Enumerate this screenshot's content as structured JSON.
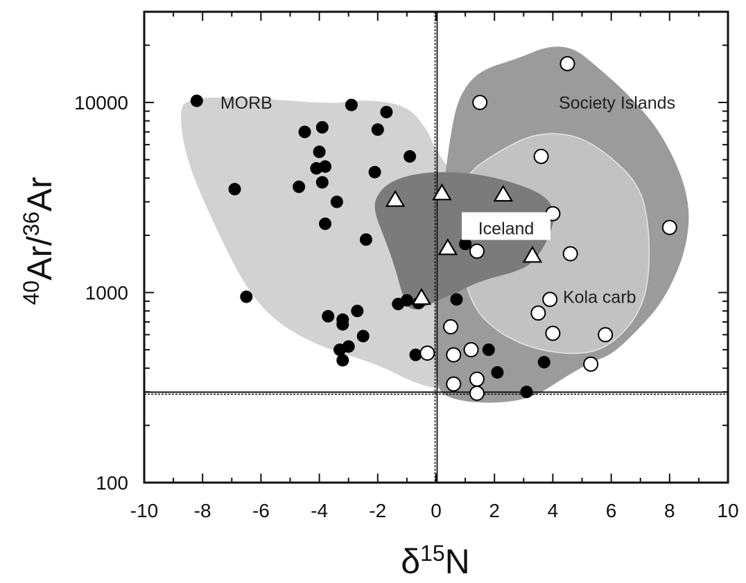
{
  "chart_data": {
    "type": "scatter",
    "title": "",
    "xlabel": {
      "prefix": "δ",
      "sup": "15",
      "base": "N"
    },
    "ylabel": {
      "sup1": "40",
      "base1": "Ar/",
      "sup2": "36",
      "base2": "Ar"
    },
    "x_range": [
      -10,
      10
    ],
    "y_range": [
      100,
      30000
    ],
    "y_scale": "log",
    "x_ticks": [
      -10,
      -8,
      -6,
      -4,
      -2,
      0,
      2,
      4,
      6,
      8,
      10
    ],
    "x_tick_labels": [
      "-10",
      "-8",
      "-6",
      "-4",
      "-2",
      "0",
      "2",
      "4",
      "6",
      "8",
      "10"
    ],
    "y_ticks": [
      100,
      1000,
      10000
    ],
    "y_tick_labels": [
      "100",
      "1000",
      "10000"
    ],
    "reference_lines": {
      "x": 0,
      "y": 295.5
    },
    "grid": false,
    "colors": {
      "morb_field": "#d2d2d2",
      "society_field": "#9b9b9b",
      "kola_field": "#c2c2c2",
      "iceland_field": "#7b7b7b",
      "axis": "#111111"
    },
    "regions": [
      {
        "label": "MORB",
        "label_at": [
          -6.5,
          10000
        ],
        "polygon": [
          [
            -8.6,
            10700
          ],
          [
            -6,
            10500
          ],
          [
            -3.5,
            9800
          ],
          [
            -2.5,
            10400
          ],
          [
            -1,
            9700
          ],
          [
            -0.3,
            7200
          ],
          [
            0,
            5500
          ],
          [
            1,
            3500
          ],
          [
            2.5,
            1700
          ],
          [
            3.5,
            1000
          ],
          [
            4.5,
            520
          ],
          [
            3.3,
            330
          ],
          [
            0.8,
            300
          ],
          [
            -0.6,
            325
          ],
          [
            -2,
            420
          ],
          [
            -4,
            520
          ],
          [
            -5.5,
            700
          ],
          [
            -6.5,
            1050
          ],
          [
            -7.5,
            2100
          ],
          [
            -8.5,
            4700
          ],
          [
            -8.8,
            8300
          ]
        ]
      },
      {
        "label": "Society Islands",
        "label_at": [
          6.2,
          10000
        ],
        "polygon": [
          [
            0.5,
            7000
          ],
          [
            0.8,
            11000
          ],
          [
            1.5,
            14800
          ],
          [
            2.8,
            17000
          ],
          [
            3.8,
            19800
          ],
          [
            4.7,
            19500
          ],
          [
            5.5,
            15500
          ],
          [
            6.6,
            11000
          ],
          [
            7.8,
            6700
          ],
          [
            8.7,
            3200
          ],
          [
            8.6,
            1700
          ],
          [
            7.8,
            900
          ],
          [
            6.8,
            610
          ],
          [
            6,
            470
          ],
          [
            5.3,
            430
          ],
          [
            4.3,
            350
          ],
          [
            3.5,
            290
          ],
          [
            2.6,
            265
          ],
          [
            1.3,
            262
          ],
          [
            0.3,
            282
          ],
          [
            0,
            330
          ],
          [
            -0.1,
            600
          ],
          [
            0.05,
            1400
          ],
          [
            0.2,
            3000
          ]
        ]
      },
      {
        "label": "Kola carb",
        "label_at": [
          5.6,
          950
        ],
        "polygon": [
          [
            1,
            4200
          ],
          [
            2.2,
            5600
          ],
          [
            3.4,
            6900
          ],
          [
            4.8,
            6800
          ],
          [
            6,
            5200
          ],
          [
            7,
            3600
          ],
          [
            7.3,
            2200
          ],
          [
            7.3,
            1200
          ],
          [
            7,
            800
          ],
          [
            6.2,
            560
          ],
          [
            5.2,
            470
          ],
          [
            3.6,
            490
          ],
          [
            2.2,
            600
          ],
          [
            1.2,
            850
          ],
          [
            0.8,
            1600
          ],
          [
            0.8,
            2800
          ]
        ]
      },
      {
        "label": "Iceland",
        "label_at": [
          2.4,
          2200
        ],
        "polygon": [
          [
            -2.1,
            3150
          ],
          [
            -1.6,
            3850
          ],
          [
            -0.5,
            4300
          ],
          [
            1,
            4300
          ],
          [
            2.3,
            3950
          ],
          [
            3.7,
            3300
          ],
          [
            4.1,
            2650
          ],
          [
            3.9,
            2000
          ],
          [
            3.5,
            1550
          ],
          [
            3,
            1320
          ],
          [
            1.5,
            1150
          ],
          [
            0.7,
            1000
          ],
          [
            0,
            900
          ],
          [
            -0.8,
            790
          ],
          [
            -1.1,
            900
          ],
          [
            -1.4,
            1350
          ],
          [
            -1.8,
            2000
          ],
          [
            -2.1,
            2600
          ]
        ]
      }
    ],
    "series": [
      {
        "marker": "filled-circle",
        "points": [
          [
            -8.2,
            10200
          ],
          [
            -6.9,
            3500
          ],
          [
            -6.5,
            950
          ],
          [
            -4.5,
            7000
          ],
          [
            -4.7,
            3600
          ],
          [
            -3.9,
            7400
          ],
          [
            -4.0,
            5500
          ],
          [
            -4.1,
            4500
          ],
          [
            -3.8,
            4600
          ],
          [
            -3.9,
            3800
          ],
          [
            -3.4,
            3000
          ],
          [
            -3.8,
            2300
          ],
          [
            -3.7,
            750
          ],
          [
            -3.2,
            720
          ],
          [
            -3.2,
            680
          ],
          [
            -3.0,
            520
          ],
          [
            -3.3,
            500
          ],
          [
            -3.2,
            440
          ],
          [
            -2.7,
            800
          ],
          [
            -2.5,
            590
          ],
          [
            -2.9,
            9700
          ],
          [
            -1.7,
            8900
          ],
          [
            -2.0,
            7200
          ],
          [
            -2.1,
            4300
          ],
          [
            -2.4,
            1900
          ],
          [
            -0.9,
            5200
          ],
          [
            -1.3,
            870
          ],
          [
            -1.0,
            910
          ],
          [
            -0.6,
            880
          ],
          [
            -0.7,
            470
          ],
          [
            0.7,
            920
          ],
          [
            1.0,
            1800
          ],
          [
            1.8,
            500
          ],
          [
            2.1,
            380
          ],
          [
            3.1,
            300
          ],
          [
            3.7,
            430
          ]
        ]
      },
      {
        "marker": "open-circle",
        "points": [
          [
            1.5,
            10000
          ],
          [
            4.5,
            16000
          ],
          [
            3.6,
            5200
          ],
          [
            4.0,
            2600
          ],
          [
            8.0,
            2200
          ],
          [
            1.4,
            1650
          ],
          [
            4.6,
            1600
          ],
          [
            3.9,
            920
          ],
          [
            3.5,
            780
          ],
          [
            4.0,
            610
          ],
          [
            5.8,
            600
          ],
          [
            5.3,
            420
          ],
          [
            0.5,
            660
          ],
          [
            1.2,
            500
          ],
          [
            0.6,
            470
          ],
          [
            -0.3,
            480
          ],
          [
            1.4,
            350
          ],
          [
            0.6,
            330
          ],
          [
            1.4,
            295
          ]
        ]
      },
      {
        "marker": "open-triangle",
        "points": [
          [
            -1.4,
            3050
          ],
          [
            0.2,
            3300
          ],
          [
            2.3,
            3250
          ],
          [
            0.4,
            1700
          ],
          [
            3.3,
            1550
          ],
          [
            -0.5,
            930
          ]
        ]
      }
    ]
  }
}
